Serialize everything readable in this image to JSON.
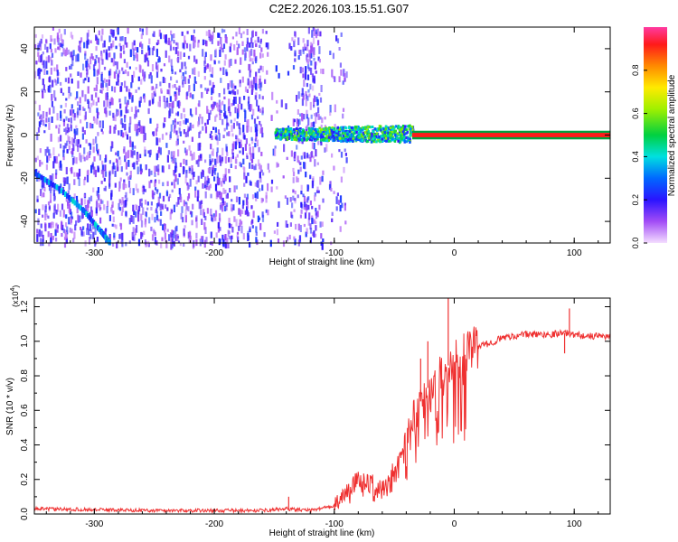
{
  "title": "C2E2.2026.103.15.51.G07",
  "colors": {
    "spectrum_low": "#7a2cf0",
    "spectrum_high": "#ff0000",
    "snr_line": "#ef3030",
    "carrier_line": "#ff1a1a"
  },
  "chart_data": [
    {
      "type": "heatmap",
      "panel": "spectrogram",
      "xlabel": "Height of straight line (km)",
      "ylabel": "Frequency (Hz)",
      "xlim": [
        -350,
        130
      ],
      "ylim": [
        -50,
        50
      ],
      "x_ticks": [
        -300,
        -200,
        -100,
        0,
        100
      ],
      "y_ticks": [
        -40,
        -20,
        0,
        20,
        40
      ],
      "colorbar": {
        "label": "Normalized spectral amplitude",
        "range": [
          0,
          1
        ],
        "ticks": [
          "0.0",
          "0.2",
          "0.4",
          "0.6",
          "0.8"
        ],
        "colormap": "rainbow"
      },
      "features": [
        {
          "name": "noise-field",
          "x_range": [
            -350,
            -110
          ],
          "freq_range": [
            -50,
            50
          ],
          "amplitude": 0.1
        },
        {
          "name": "early-signal-arc",
          "points": [
            [
              -350,
              -18
            ],
            [
              -330,
              -25
            ],
            [
              -310,
              -35
            ],
            [
              -295,
              -45
            ],
            [
              -288,
              -50
            ]
          ],
          "amplitude": 0.3
        },
        {
          "name": "carrier-line",
          "x_range": [
            -35,
            130
          ],
          "freq": 0,
          "amplitude": 1.0
        },
        {
          "name": "carrier-onset",
          "x_range": [
            -150,
            -35
          ],
          "freq_center": 1,
          "freq_spread": 6,
          "amplitude": 0.45
        }
      ]
    },
    {
      "type": "line",
      "panel": "snr",
      "xlabel": "Height of straight line (km)",
      "ylabel": "SNR (10 * v/v)",
      "y_multiplier": "(x10^4)",
      "xlim": [
        -350,
        130
      ],
      "ylim": [
        0,
        1.25
      ],
      "x_ticks": [
        -300,
        -200,
        -100,
        0,
        100
      ],
      "y_ticks": [
        "0.0",
        "0.2",
        "0.4",
        "0.6",
        "0.8",
        "1.0",
        "1.2"
      ],
      "series": [
        {
          "x": [
            -350,
            -300,
            -250,
            -200,
            -160,
            -140,
            -120,
            -100,
            -90,
            -80,
            -70,
            -60,
            -50,
            -45,
            -40,
            -35,
            -30,
            -25,
            -20,
            -15,
            -10,
            -5,
            0,
            10,
            20,
            30,
            40,
            50,
            60,
            80,
            90,
            100,
            110,
            130
          ],
          "y": [
            0.03,
            0.025,
            0.02,
            0.02,
            0.02,
            0.03,
            0.02,
            0.05,
            0.12,
            0.22,
            0.18,
            0.15,
            0.25,
            0.32,
            0.45,
            0.55,
            0.62,
            0.7,
            0.75,
            0.8,
            0.82,
            0.86,
            0.88,
            0.94,
            0.97,
            0.99,
            1.02,
            1.03,
            1.04,
            1.04,
            1.05,
            1.04,
            1.03,
            1.03
          ]
        }
      ],
      "spikes": [
        {
          "x": -138,
          "y": 0.1
        },
        {
          "x": -28,
          "y": 0.9
        },
        {
          "x": -22,
          "y": 1.0
        },
        {
          "x": -5,
          "y": 1.25
        },
        {
          "x": 92,
          "y": 0.93
        },
        {
          "x": 96,
          "y": 1.19
        }
      ]
    }
  ]
}
